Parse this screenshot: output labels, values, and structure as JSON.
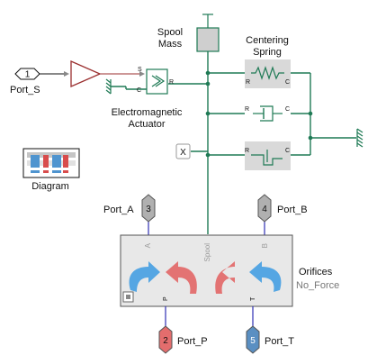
{
  "colors": {
    "wire": "#1f7a55",
    "port_wire": "#2f2fb3",
    "gain": "#9b2f2f",
    "block_fill": "#d9d9d9",
    "subsystem_fill": "#e8e8e8",
    "blue_arrow": "#55a6e3",
    "red_arrow": "#e37373",
    "port_grey": "#b0b0b0",
    "port_red": "#e36d6d",
    "port_blue": "#5a8fc2"
  },
  "inport": {
    "number": "1",
    "label": "Port_S"
  },
  "gain_ports": {
    "signal": "S",
    "conserving": "C",
    "right": "R"
  },
  "actuator": {
    "label_line1": "Electromagnetic",
    "label_line2": "Actuator"
  },
  "spool_mass": {
    "label_line1": "Spool",
    "label_line2": "Mass"
  },
  "centering_spring": {
    "label_line1": "Centering",
    "label_line2": "Spring",
    "port_r": "R",
    "port_c": "C"
  },
  "damper": {
    "port_r": "R",
    "port_c": "C"
  },
  "hard_stop": {
    "port_r": "R",
    "port_c": "C"
  },
  "position_port": {
    "label": "X"
  },
  "diagram_block": {
    "label": "Diagram"
  },
  "ports": {
    "a": {
      "number": "3",
      "label": "Port_A",
      "inner": "A"
    },
    "b": {
      "number": "4",
      "label": "Port_B",
      "inner": "B"
    },
    "p": {
      "number": "2",
      "label": "Port_P",
      "inner": "P"
    },
    "t": {
      "number": "5",
      "label": "Port_T",
      "inner": "T"
    },
    "spool_inner": "Spool"
  },
  "orifices": {
    "label_line1": "Orifices",
    "label_line2": "No_Force"
  }
}
